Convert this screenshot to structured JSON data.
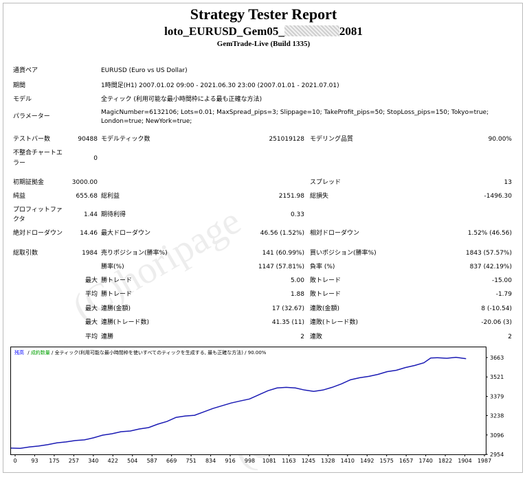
{
  "header": {
    "title": "Strategy Tester Report",
    "ea_prefix": "loto_EURUSD_Gem05_",
    "ea_suffix": "2081",
    "build": "GemTrade-Live (Build 1335)"
  },
  "info": {
    "pair_label": "通貨ペア",
    "pair_value": "EURUSD (Euro vs US Dollar)",
    "period_label": "期間",
    "period_value": "1時間足(H1) 2007.01.02 09:00 - 2021.06.30 23:00 (2007.01.01 - 2021.07.01)",
    "model_label": "モデル",
    "model_value": "全ティック (利用可能な最小時間枠による最も正確な方法)",
    "params_label": "パラメーター",
    "params_line1": "MagicNumber=6132106; Lots=0.01; MaxSpread_pips=3; Slippage=10; TakeProfit_pips=50; StopLoss_pips=150; Tokyo=true;",
    "params_line2": "London=true; NewYork=true;"
  },
  "stats": {
    "bars_label": "テストバー数",
    "bars_value": "90488",
    "ticks_label": "モデルティック数",
    "ticks_value": "251019128",
    "quality_label": "モデリング品質",
    "quality_value": "90.00%",
    "mismatch_label1": "不整合チャートエ",
    "mismatch_label2": "ラー",
    "mismatch_value": "0",
    "deposit_label": "初期証拠金",
    "deposit_value": "3000.00",
    "spread_label": "スプレッド",
    "spread_value": "13",
    "netprofit_label": "純益",
    "netprofit_value": "655.68",
    "grossprofit_label": "総利益",
    "grossprofit_value": "2151.98",
    "grossloss_label": "総損失",
    "grossloss_value": "-1496.30",
    "pf_label1": "プロフィットファ",
    "pf_label2": "クタ",
    "pf_value": "1.44",
    "expected_label": "期待利得",
    "expected_value": "0.33",
    "absdd_label": "絶対ドローダウン",
    "absdd_value": "14.46",
    "maxdd_label": "最大ドローダウン",
    "maxdd_value": "46.56 (1.52%)",
    "reldd_label": "相対ドローダウン",
    "reldd_value": "1.52% (46.56)",
    "trades_label": "総取引数",
    "trades_value": "1984",
    "short_label": "売りポジション(勝率%)",
    "short_value": "141 (60.99%)",
    "long_label": "買いポジション(勝率%)",
    "long_value": "1843 (57.57%)",
    "win_label": "勝率(%)",
    "win_value": "1147 (57.81%)",
    "loss_label": "負率 (%)",
    "loss_value": "837 (42.19%)",
    "max_label": "最大",
    "avg_label": "平均",
    "largest_win_label": "勝トレード",
    "largest_win_value": "5.00",
    "largest_loss_label": "敗トレード",
    "largest_loss_value": "-15.00",
    "avg_win_label": "勝トレード",
    "avg_win_value": "1.88",
    "avg_loss_label": "敗トレード",
    "avg_loss_value": "-1.79",
    "consec_win_amt_label": "連勝(金額)",
    "consec_win_amt_value": "17 (32.67)",
    "consec_loss_amt_label": "連敗(金額)",
    "consec_loss_amt_value": "8 (-10.54)",
    "consec_win_tr_label": "連勝(トレード数)",
    "consec_win_tr_value": "41.35 (11)",
    "consec_loss_tr_label": "連敗(トレード数)",
    "consec_loss_tr_value": "-20.06 (3)",
    "avg_consec_win_label": "連勝",
    "avg_consec_win_value": "2",
    "avg_consec_loss_label": "連敗",
    "avg_consec_loss_value": "2"
  },
  "watermark": {
    "text": "(C)horipage"
  },
  "chart_legend": {
    "balance": "残高",
    "lots": "成約数量",
    "ticks": "全ティック(利用可能な最小時間枠を使いすべてのティックを生成する, 最も正確な方法)",
    "quality": "90.00%"
  },
  "colors": {
    "line": "#1a1ab4",
    "balance_label": "#0000ff",
    "lots_label": "#00a000"
  },
  "chart_data": {
    "type": "line",
    "x_ticks": [
      "0",
      "93",
      "175",
      "257",
      "340",
      "422",
      "504",
      "587",
      "669",
      "751",
      "834",
      "916",
      "998",
      "1081",
      "1163",
      "1245",
      "1328",
      "1410",
      "1492",
      "1575",
      "1657",
      "1740",
      "1822",
      "1904",
      "1987"
    ],
    "y_ticks": [
      "3663",
      "3521",
      "3379",
      "3238",
      "3096",
      "2954"
    ],
    "ylim": [
      2954,
      3663
    ],
    "xlim": [
      0,
      2070
    ],
    "x": [
      0,
      40,
      80,
      120,
      160,
      200,
      240,
      280,
      320,
      360,
      400,
      440,
      480,
      520,
      560,
      600,
      640,
      680,
      720,
      760,
      800,
      840,
      880,
      920,
      960,
      1000,
      1040,
      1080,
      1120,
      1160,
      1200,
      1240,
      1280,
      1320,
      1360,
      1400,
      1440,
      1480,
      1520,
      1560,
      1600,
      1640,
      1680,
      1720,
      1760,
      1800,
      1830,
      1860,
      1900,
      1940,
      1984
    ],
    "y": [
      3000,
      2998,
      3008,
      3015,
      3025,
      3038,
      3045,
      3055,
      3060,
      3075,
      3095,
      3105,
      3120,
      3125,
      3140,
      3150,
      3175,
      3195,
      3225,
      3235,
      3240,
      3265,
      3290,
      3310,
      3330,
      3345,
      3360,
      3390,
      3420,
      3440,
      3445,
      3440,
      3425,
      3415,
      3425,
      3445,
      3470,
      3500,
      3515,
      3525,
      3540,
      3560,
      3570,
      3590,
      3605,
      3625,
      3660,
      3662,
      3658,
      3665,
      3655
    ]
  }
}
